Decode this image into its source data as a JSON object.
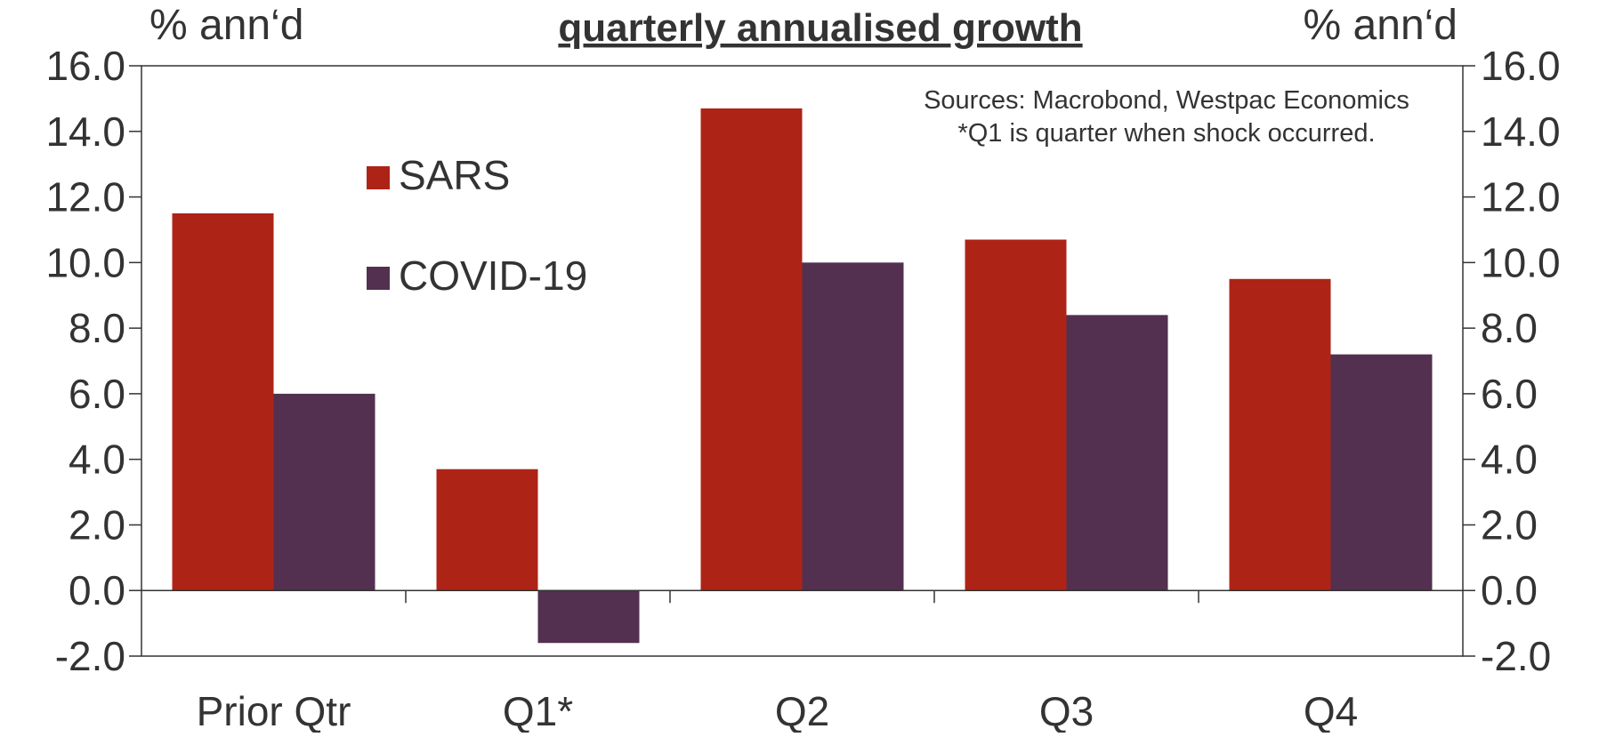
{
  "chart_data": {
    "type": "bar",
    "title": "quarterly annualised growth",
    "ylabel_left": "% ann‘d",
    "ylabel_right": "% ann‘d",
    "categories": [
      "Prior Qtr",
      "Q1*",
      "Q2",
      "Q3",
      "Q4"
    ],
    "series": [
      {
        "name": "SARS",
        "color": "#ad2417",
        "values": [
          11.5,
          3.7,
          14.7,
          10.7,
          9.5
        ]
      },
      {
        "name": "COVID-19",
        "color": "#53304f",
        "values": [
          6.0,
          -1.6,
          10.0,
          8.4,
          7.2
        ]
      }
    ],
    "ylim": [
      -2,
      16
    ],
    "y_ticks": [
      16,
      14,
      12,
      10,
      8,
      6,
      4,
      2,
      0,
      -2
    ],
    "y_tick_labels": [
      "16.0",
      "14.0",
      "12.0",
      "10.0",
      "8.0",
      "6.0",
      "4.0",
      "2.0",
      "0.0",
      "-2.0"
    ],
    "grid": false,
    "legend_placement": "upper-left",
    "annotations": [
      "Sources: Macrobond, Westpac Economics",
      "*Q1 is quarter when shock occurred."
    ]
  }
}
